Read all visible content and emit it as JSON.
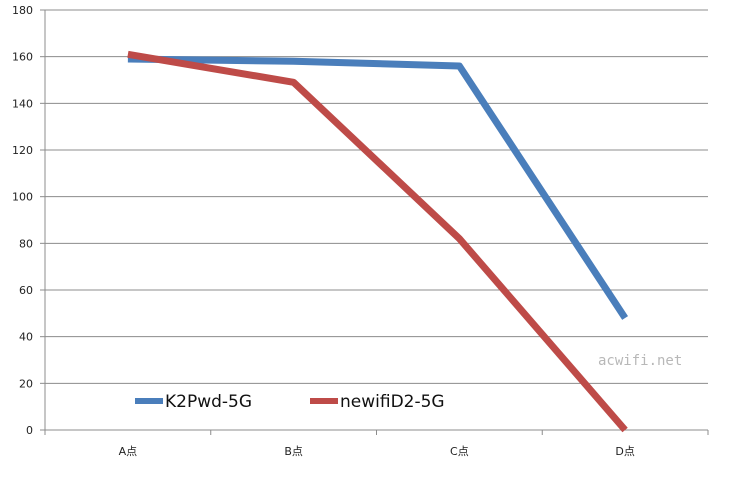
{
  "chart_data": {
    "type": "line",
    "title": "",
    "xlabel": "",
    "ylabel": "",
    "categories": [
      "A点",
      "B点",
      "C点",
      "D点"
    ],
    "ylim": [
      0,
      180
    ],
    "yticks": [
      0,
      20,
      40,
      60,
      80,
      100,
      120,
      140,
      160,
      180
    ],
    "grid": true,
    "legend_position": "bottom-left",
    "series": [
      {
        "name": "K2Pwd-5G",
        "color": "#4a7ebb",
        "values": [
          159,
          158,
          156,
          48
        ]
      },
      {
        "name": "newifiD2-5G",
        "color": "#be4b48",
        "values": [
          161,
          149,
          82,
          0
        ]
      }
    ]
  },
  "watermark": "acwifi.net"
}
